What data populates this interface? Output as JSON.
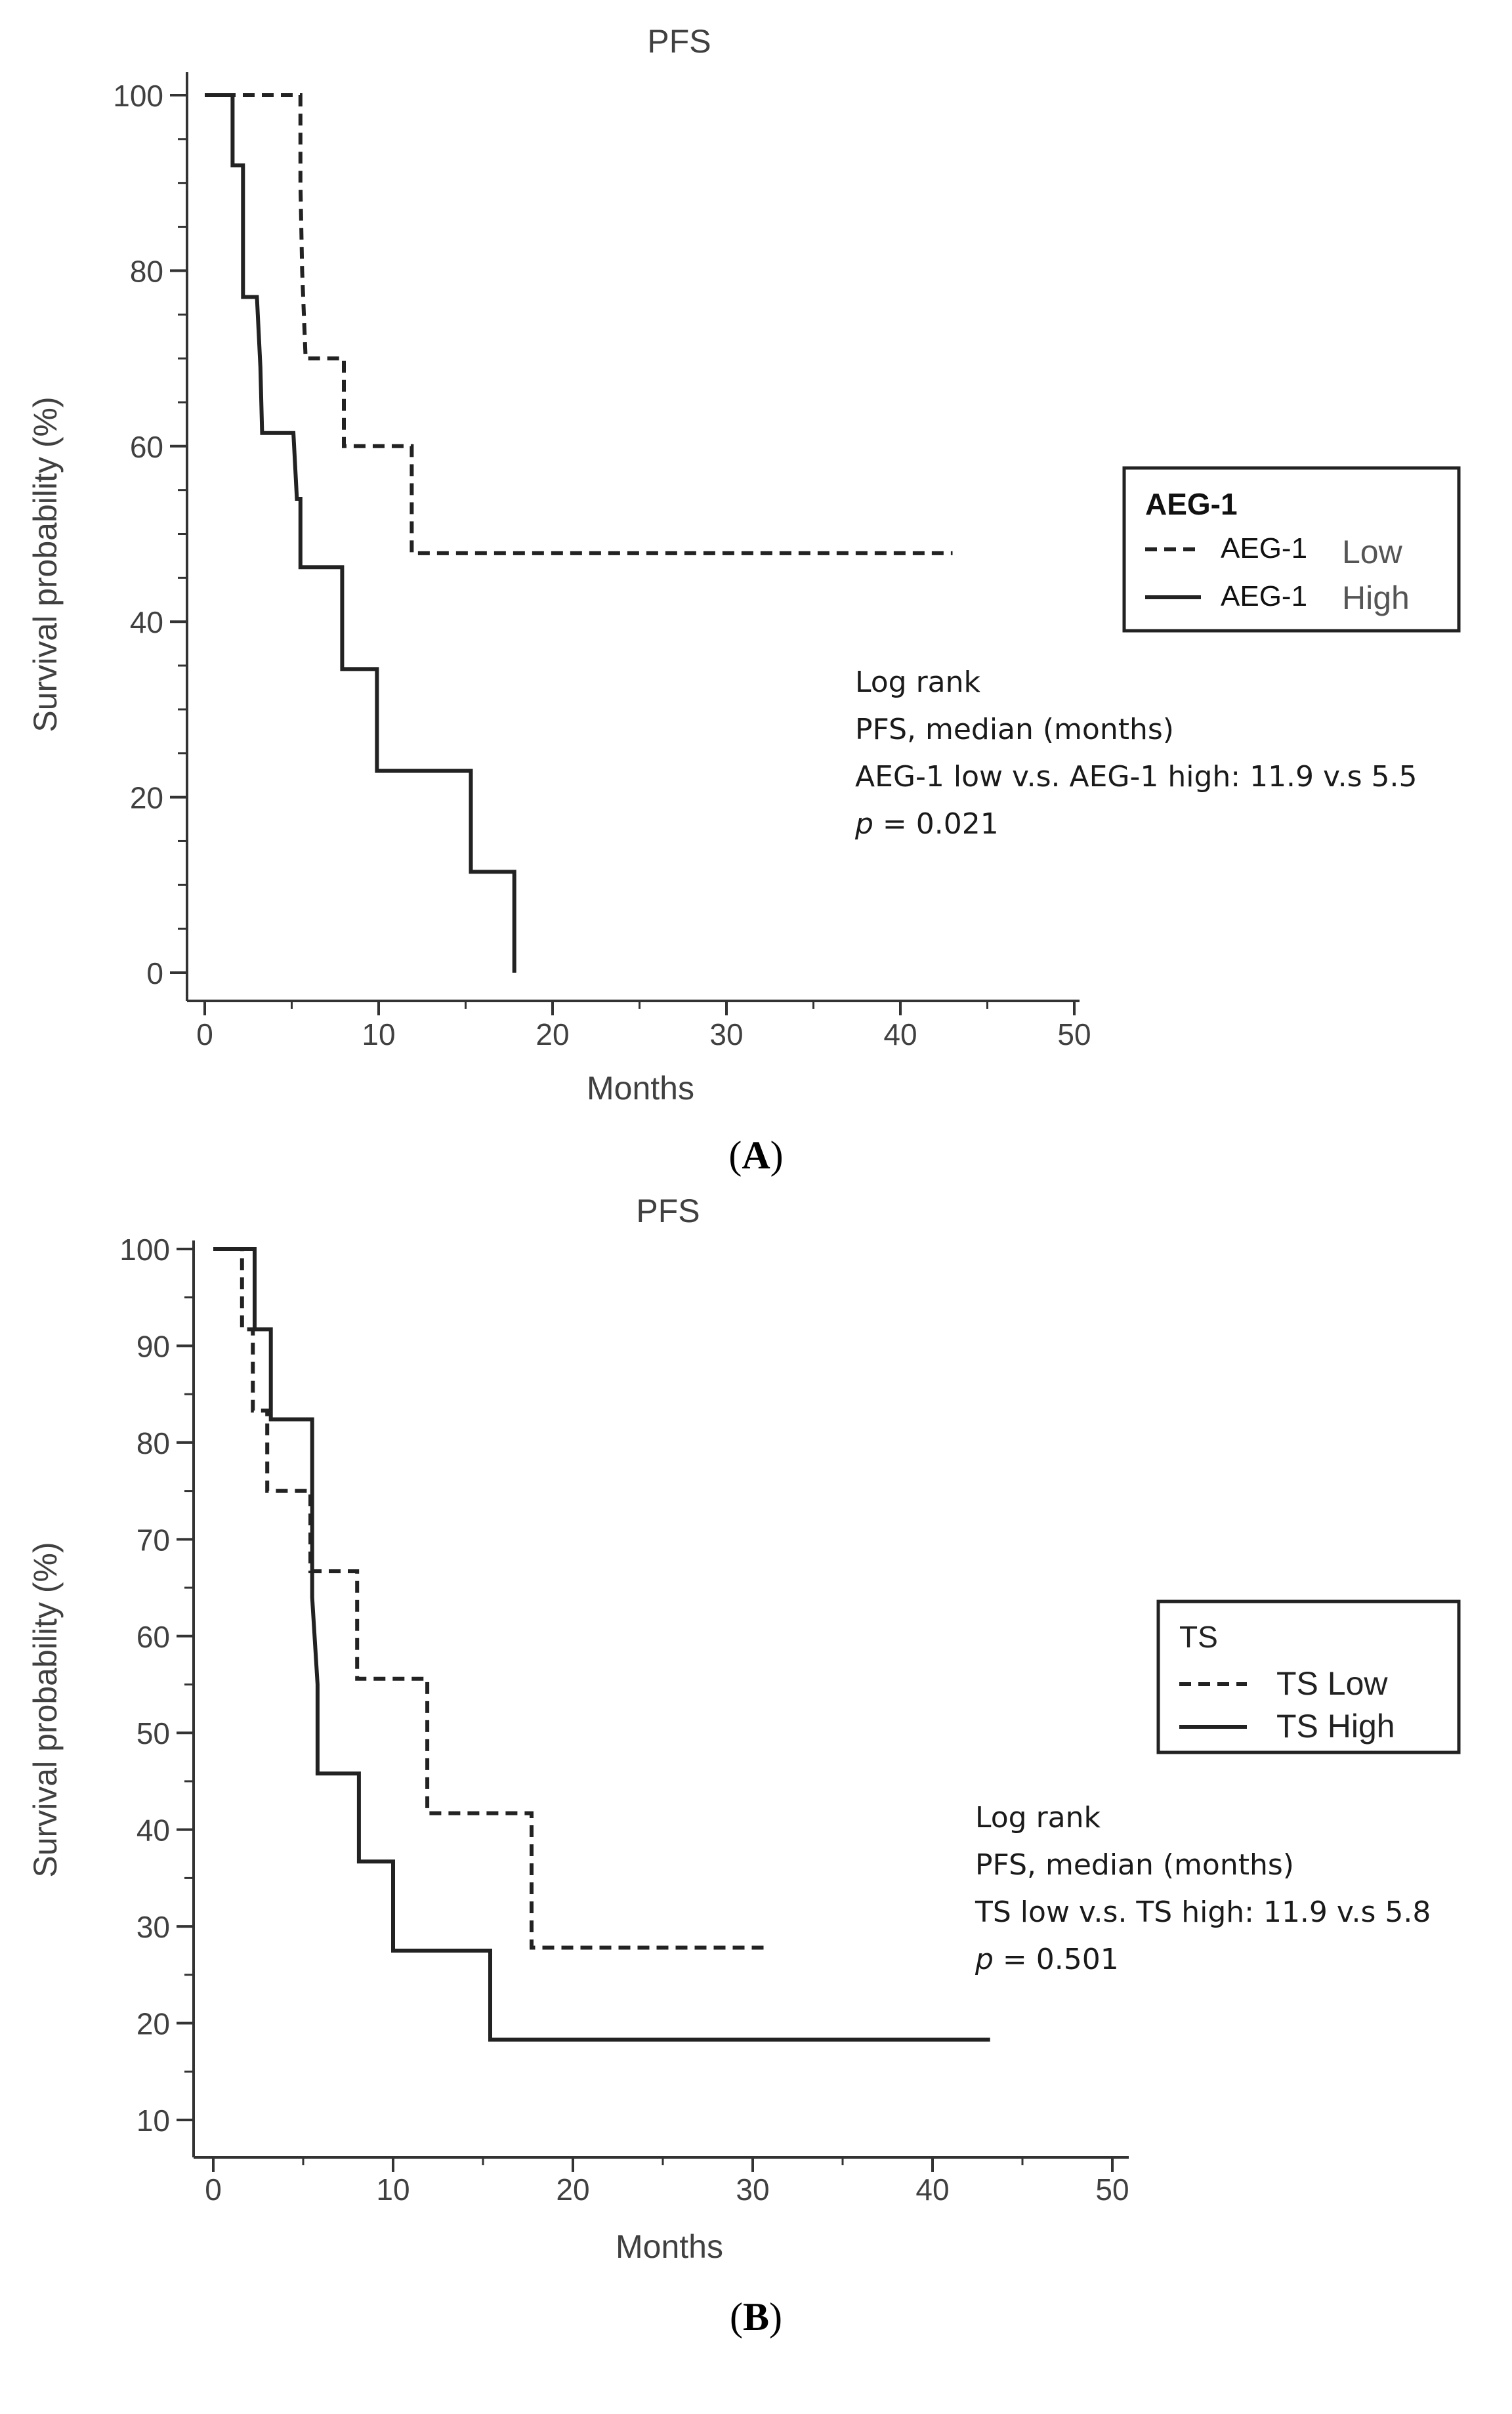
{
  "chart_data": [
    {
      "type": "line",
      "panel": "A",
      "title": "PFS",
      "xlabel": "Months",
      "ylabel": "Survival probability (%)",
      "xlim": [
        0,
        50
      ],
      "ylim": [
        0,
        100
      ],
      "xticks": [
        0,
        10,
        20,
        30,
        40,
        50
      ],
      "yticks": [
        0,
        20,
        40,
        60,
        80,
        100
      ],
      "legend": {
        "title": "AEG-1",
        "placement": "right",
        "entries": [
          {
            "prefix": "AEG-1",
            "label": "Low",
            "style": "dashed"
          },
          {
            "prefix": "AEG-1",
            "label": "High",
            "style": "solid"
          }
        ]
      },
      "series": [
        {
          "name": "AEG-1 Low",
          "style": "dashed",
          "x": [
            0,
            5.5,
            5.5,
            5.6,
            5.8,
            8,
            8,
            11.9,
            11.9,
            43
          ],
          "y": [
            100,
            100,
            90,
            80,
            70,
            70,
            60,
            60,
            47.8,
            47.8
          ]
        },
        {
          "name": "AEG-1 High",
          "style": "solid",
          "x": [
            0,
            1.6,
            1.6,
            2.2,
            2.2,
            3.0,
            3.2,
            3.3,
            5.1,
            5.3,
            5.5,
            5.5,
            7.9,
            7.9,
            9.9,
            9.9,
            15.3,
            15.3,
            17.8,
            17.8
          ],
          "y": [
            100,
            100,
            92,
            92,
            77,
            77,
            69,
            61.5,
            61.5,
            54,
            54,
            46.2,
            46.2,
            34.6,
            34.6,
            23,
            23,
            11.5,
            11.5,
            0
          ]
        }
      ],
      "annotation": {
        "line1": "Log rank",
        "line2": "PFS, median (months)",
        "line3": "AEG-1 low v.s. AEG-1 high: 11.9 v.s 5.5",
        "p_label": "p",
        "p_value": " = 0.021"
      },
      "caption": "A"
    },
    {
      "type": "line",
      "panel": "B",
      "title": "PFS",
      "xlabel": "Months",
      "ylabel": "Survival probability (%)",
      "xlim": [
        0,
        50
      ],
      "ylim": [
        10,
        100
      ],
      "xticks": [
        0,
        10,
        20,
        30,
        40,
        50
      ],
      "yticks": [
        10,
        20,
        30,
        40,
        50,
        60,
        70,
        80,
        90,
        100
      ],
      "legend": {
        "title": "TS",
        "placement": "right",
        "entries": [
          {
            "label": "TS Low",
            "style": "dashed"
          },
          {
            "label": "TS High",
            "style": "solid"
          }
        ]
      },
      "series": [
        {
          "name": "TS Low",
          "style": "dashed",
          "x": [
            0,
            1.6,
            1.6,
            2.2,
            2.2,
            3.0,
            3.0,
            5.4,
            5.4,
            8.0,
            8.0,
            11.9,
            11.9,
            17.7,
            17.7,
            31
          ],
          "y": [
            100,
            100,
            91.7,
            91.7,
            83.3,
            83.3,
            75,
            75,
            66.7,
            66.7,
            55.6,
            55.6,
            41.7,
            41.7,
            27.8,
            27.8
          ]
        },
        {
          "name": "TS High",
          "style": "solid",
          "x": [
            0,
            2.3,
            2.3,
            3.2,
            3.2,
            5.5,
            5.5,
            5.8,
            5.8,
            8.1,
            8.1,
            10.0,
            10.0,
            15.4,
            15.4,
            43.2
          ],
          "y": [
            100,
            100,
            91.7,
            91.7,
            82.4,
            82.4,
            64,
            55,
            45.8,
            45.8,
            36.7,
            36.7,
            27.5,
            27.5,
            18.3,
            18.3
          ]
        }
      ],
      "annotation": {
        "line1": "Log rank",
        "line2": "PFS, median (months)",
        "line3": "TS low v.s. TS high: 11.9 v.s 5.8",
        "p_label": "p",
        "p_value": " = 0.501"
      },
      "caption": "B"
    }
  ]
}
